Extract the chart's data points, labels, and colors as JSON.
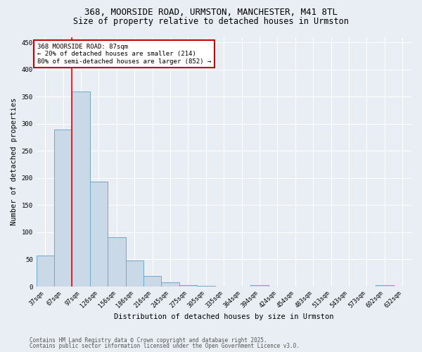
{
  "title_line1": "368, MOORSIDE ROAD, URMSTON, MANCHESTER, M41 8TL",
  "title_line2": "Size of property relative to detached houses in Urmston",
  "xlabel": "Distribution of detached houses by size in Urmston",
  "ylabel": "Number of detached properties",
  "bar_labels": [
    "37sqm",
    "67sqm",
    "97sqm",
    "126sqm",
    "156sqm",
    "186sqm",
    "216sqm",
    "245sqm",
    "275sqm",
    "305sqm",
    "335sqm",
    "364sqm",
    "394sqm",
    "424sqm",
    "454sqm",
    "483sqm",
    "513sqm",
    "543sqm",
    "573sqm",
    "602sqm",
    "632sqm"
  ],
  "bar_values": [
    57,
    290,
    360,
    193,
    91,
    48,
    20,
    8,
    3,
    1,
    0,
    0,
    3,
    0,
    0,
    0,
    0,
    0,
    0,
    3,
    0
  ],
  "bar_color": "#c9d9e8",
  "bar_edge_color": "#6fa8c8",
  "ylim": [
    0,
    460
  ],
  "yticks": [
    0,
    50,
    100,
    150,
    200,
    250,
    300,
    350,
    400,
    450
  ],
  "red_line_x": 1.5,
  "annotation_text": "368 MOORSIDE ROAD: 87sqm\n← 20% of detached houses are smaller (214)\n80% of semi-detached houses are larger (852) →",
  "annotation_box_color": "#ffffff",
  "annotation_box_edge": "#cc0000",
  "footnote_line1": "Contains HM Land Registry data © Crown copyright and database right 2025.",
  "footnote_line2": "Contains public sector information licensed under the Open Government Licence v3.0.",
  "bg_color": "#e8eef4",
  "grid_color": "#ffffff",
  "title_fontsize": 9,
  "subtitle_fontsize": 8.5,
  "tick_fontsize": 6,
  "ylabel_fontsize": 7.5,
  "xlabel_fontsize": 7.5,
  "annotation_fontsize": 6.5,
  "footnote_fontsize": 5.5
}
